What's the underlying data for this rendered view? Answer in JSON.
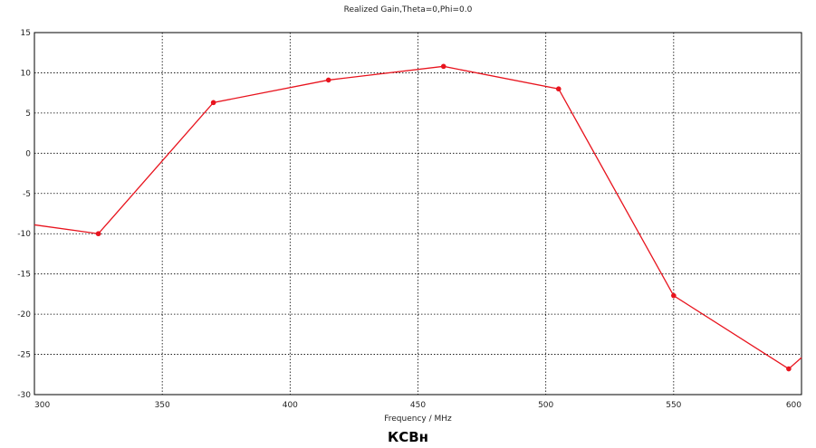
{
  "chart_data": {
    "type": "line",
    "title": "Realized Gain,Theta=0,Phi=0.0",
    "xlabel": "Frequency / MHz",
    "ylabel": "",
    "xlim": [
      300,
      600
    ],
    "ylim": [
      -30,
      15
    ],
    "x_ticks": [
      300,
      350,
      400,
      450,
      500,
      550,
      600
    ],
    "y_ticks": [
      15,
      10,
      5,
      0,
      -5,
      -10,
      -15,
      -20,
      -25,
      -30
    ],
    "grid": true,
    "series": [
      {
        "color": "#e8141e",
        "line_x": [
          300,
          325,
          370,
          415,
          460,
          505,
          550,
          595,
          600
        ],
        "line_y": [
          -8.9,
          -10.0,
          6.3,
          9.1,
          10.8,
          8.0,
          -17.7,
          -26.8,
          -25.4
        ],
        "marker_x": [
          325,
          370,
          415,
          460,
          505,
          550,
          595
        ],
        "marker_y": [
          -10.0,
          6.3,
          9.1,
          10.8,
          8.0,
          -17.7,
          -26.8
        ]
      }
    ]
  },
  "caption": "КСВн"
}
